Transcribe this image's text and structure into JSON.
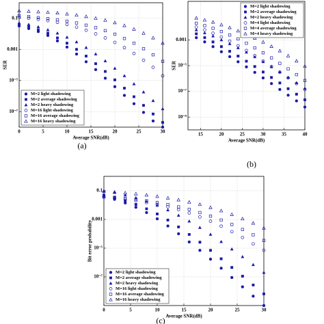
{
  "chart_data": [
    {
      "type": "scatter",
      "caption": "(a)",
      "xlabel": "Average SNR(dB)",
      "ylabel": "SER",
      "yscale": "log",
      "grid": true,
      "legend": "lower left",
      "x": [
        0,
        2,
        4,
        6,
        8,
        10,
        12,
        14,
        16,
        18,
        20,
        22,
        24,
        26,
        28,
        30
      ],
      "xlim": [
        0,
        30
      ],
      "xticks": [
        0,
        5,
        10,
        15,
        20,
        25,
        30
      ],
      "ylim": [
        1e-08,
        1
      ],
      "yticks": [
        0.1,
        0.001,
        {
          "value": 1e-05,
          "label": "10⁻⁵"
        },
        {
          "value": 1e-07,
          "label": "10⁻⁷"
        }
      ],
      "series": [
        {
          "name": "M=2 light shadowing",
          "color": "#1a1aa8",
          "marker": "circle",
          "values": [
            0.032,
            0.022,
            0.014,
            0.0079,
            0.0035,
            0.0014,
            0.0005,
            0.00016,
            5e-05,
            1.4e-05,
            4e-06,
            1.1e-06,
            3.2e-07,
            8.9e-08,
            2.5e-08,
            1e-08
          ]
        },
        {
          "name": "M=2 average shadowing",
          "color": "#1a1aa8",
          "marker": "square",
          "values": [
            0.04,
            0.028,
            0.018,
            0.011,
            0.0055,
            0.0025,
            0.001,
            0.00037,
            0.00012,
            3.8e-05,
            1.1e-05,
            3.2e-06,
            9e-07,
            2.5e-07,
            7e-08,
            2e-08
          ]
        },
        {
          "name": "M=2 heavy shadowing",
          "color": "#1a1aa8",
          "marker": "triangle",
          "values": [
            0.05,
            0.04,
            0.028,
            0.018,
            0.011,
            0.006,
            0.003,
            0.0013,
            0.0005,
            0.00018,
            6e-05,
            2e-05,
            6e-06,
            1.8e-06,
            5e-07,
            1.5e-07
          ]
        },
        {
          "name": "M=16 light shadowing",
          "color": "#1a1aa8",
          "marker": "open-circle",
          "values": [
            0.12,
            0.1,
            0.085,
            0.07,
            0.055,
            0.04,
            0.027,
            0.017,
            0.01,
            0.0055,
            0.0028,
            0.0013,
            0.00055,
            0.0002,
            7e-05,
            2e-05
          ]
        },
        {
          "name": "M=16 average shadowing",
          "color": "#1a1aa8",
          "marker": "open-square",
          "values": [
            0.15,
            0.13,
            0.11,
            0.095,
            0.08,
            0.065,
            0.05,
            0.036,
            0.025,
            0.016,
            0.0095,
            0.005,
            0.0025,
            0.0011,
            0.00045,
            0.00017
          ]
        },
        {
          "name": "M=16 heavy shadowing",
          "color": "#1a1aa8",
          "marker": "open-triangle",
          "values": [
            0.3,
            0.28,
            0.26,
            0.24,
            0.22,
            0.19,
            0.16,
            0.13,
            0.1,
            0.075,
            0.052,
            0.034,
            0.02,
            0.011,
            0.0055,
            0.0025
          ]
        }
      ]
    },
    {
      "type": "scatter",
      "caption": "(b)",
      "xlabel": "Average SNR(dB)",
      "ylabel": "SER",
      "yscale": "log",
      "grid": true,
      "legend": "upper right",
      "x": [
        14,
        16,
        18,
        20,
        22,
        24,
        26,
        28,
        30,
        32,
        34,
        36,
        38,
        40
      ],
      "xlim": [
        12,
        40
      ],
      "xticks": [
        15,
        20,
        25,
        30,
        35,
        40
      ],
      "ylim": [
        1e-10,
        1
      ],
      "yticks": [
        0.001,
        {
          "value": 1e-05,
          "label": "10⁻⁵"
        },
        {
          "value": 1e-07,
          "label": "10⁻⁷"
        },
        {
          "value": 1e-09,
          "label": "10⁻⁹"
        }
      ],
      "series": [
        {
          "name": "M=2 light shadowing",
          "color": "#1a1aa8",
          "marker": "circle",
          "values": [
            0.0015,
            0.0007,
            0.0003,
            0.00012,
            5e-05,
            2e-05,
            8e-06,
            3e-06,
            1.1e-06,
            4e-07,
            1.4e-07,
            5e-08,
            1.8e-08,
            6e-09
          ]
        },
        {
          "name": "M=2 average shadowing",
          "color": "#1a1aa8",
          "marker": "square",
          "values": [
            0.003,
            0.0015,
            0.0007,
            0.0003,
            0.00013,
            5.5e-05,
            2.2e-05,
            8.5e-06,
            3.2e-06,
            1.2e-06,
            4.5e-07,
            1.6e-07,
            6e-08,
            2.2e-08
          ]
        },
        {
          "name": "M=2 heavy shadowing",
          "color": "#1a1aa8",
          "marker": "triangle",
          "values": [
            0.006,
            0.0035,
            0.002,
            0.001,
            0.0005,
            0.00024,
            0.00011,
            4.8e-05,
            2e-05,
            8e-06,
            3.2e-06,
            1.2e-06,
            4.6e-07,
            1.7e-07
          ]
        },
        {
          "name": "M=4 light shadowing",
          "color": "#1a1aa8",
          "marker": "open-circle",
          "values": [
            0.01,
            0.006,
            0.0033,
            0.0017,
            0.0008,
            0.00035,
            0.00015,
            6e-05,
            2.3e-05,
            8.5e-06,
            3.1e-06,
            1.1e-06,
            4e-07,
            1.4e-07
          ]
        },
        {
          "name": "M=4 average shadowing",
          "color": "#1a1aa8",
          "marker": "open-square",
          "values": [
            0.02,
            0.013,
            0.008,
            0.0045,
            0.0024,
            0.0012,
            0.00055,
            0.00024,
            0.0001,
            4e-05,
            1.5e-05,
            5.6e-06,
            2e-06,
            7e-07
          ]
        },
        {
          "name": "M=4 heavy shadowing",
          "color": "#1a1aa8",
          "marker": "open-triangle",
          "values": [
            0.05,
            0.035,
            0.024,
            0.015,
            0.009,
            0.005,
            0.0027,
            0.0014,
            0.00068,
            0.00031,
            0.00014,
            5.8e-05,
            2.3e-05,
            9e-06
          ]
        }
      ]
    },
    {
      "type": "scatter",
      "caption": "(c)",
      "xlabel": "Average SNR(dB)",
      "ylabel": "Bit error probability",
      "yscale": "log",
      "grid": true,
      "legend": "lower left",
      "x": [
        0,
        2,
        4,
        6,
        8,
        10,
        12,
        14,
        16,
        18,
        20,
        22,
        24,
        26,
        28,
        30
      ],
      "xlim": [
        0,
        30
      ],
      "xticks": [
        0,
        5,
        10,
        15,
        20,
        25,
        30
      ],
      "ylim": [
        1e-09,
        1
      ],
      "yticks": [
        0.1,
        0.001,
        {
          "value": 1e-05,
          "label": "10⁻⁵"
        },
        {
          "value": 1e-07,
          "label": "10⁻⁷"
        }
      ],
      "series": [
        {
          "name": "M=2 light shadowing",
          "color": "#1a1aa8",
          "marker": "circle",
          "values": [
            0.04,
            0.025,
            0.014,
            0.007,
            0.003,
            0.0011,
            0.00035,
            0.0001,
            2.7e-05,
            7e-06,
            1.7e-06,
            4e-07,
            9e-08,
            2e-08,
            4.5e-09,
            1e-09
          ]
        },
        {
          "name": "M=2 average shadowing",
          "color": "#1a1aa8",
          "marker": "square",
          "values": [
            0.05,
            0.033,
            0.02,
            0.011,
            0.0055,
            0.0024,
            0.0009,
            0.0003,
            9e-05,
            2.6e-05,
            7e-06,
            1.8e-06,
            4.5e-07,
            1.1e-07,
            2.7e-08,
            6.5e-09
          ]
        },
        {
          "name": "M=2 heavy shadowing",
          "color": "#1a1aa8",
          "marker": "triangle",
          "values": [
            0.1,
            0.075,
            0.05,
            0.032,
            0.018,
            0.0095,
            0.0045,
            0.0019,
            0.00075,
            0.00027,
            9e-05,
            2.8e-05,
            8.5e-06,
            2.5e-06,
            7e-07,
            2e-07
          ]
        },
        {
          "name": "M=16 light shadowing",
          "color": "#1a1aa8",
          "marker": "open-circle",
          "values": [
            0.035,
            0.03,
            0.025,
            0.02,
            0.015,
            0.011,
            0.0075,
            0.0048,
            0.0028,
            0.0015,
            0.00075,
            0.00034,
            0.00014,
            5.5e-05,
            2e-05,
            7e-06
          ]
        },
        {
          "name": "M=16 average shadowing",
          "color": "#1a1aa8",
          "marker": "open-square",
          "values": [
            0.04,
            0.035,
            0.03,
            0.025,
            0.02,
            0.015,
            0.011,
            0.0075,
            0.005,
            0.003,
            0.0017,
            0.0009,
            0.00044,
            0.0002,
            8.5e-05,
            3.4e-05
          ]
        },
        {
          "name": "M=16 heavy shadowing",
          "color": "#1a1aa8",
          "marker": "open-triangle",
          "values": [
            0.09,
            0.08,
            0.07,
            0.06,
            0.05,
            0.04,
            0.031,
            0.023,
            0.016,
            0.011,
            0.0068,
            0.004,
            0.0022,
            0.0011,
            0.00055,
            0.00025
          ]
        }
      ]
    }
  ]
}
